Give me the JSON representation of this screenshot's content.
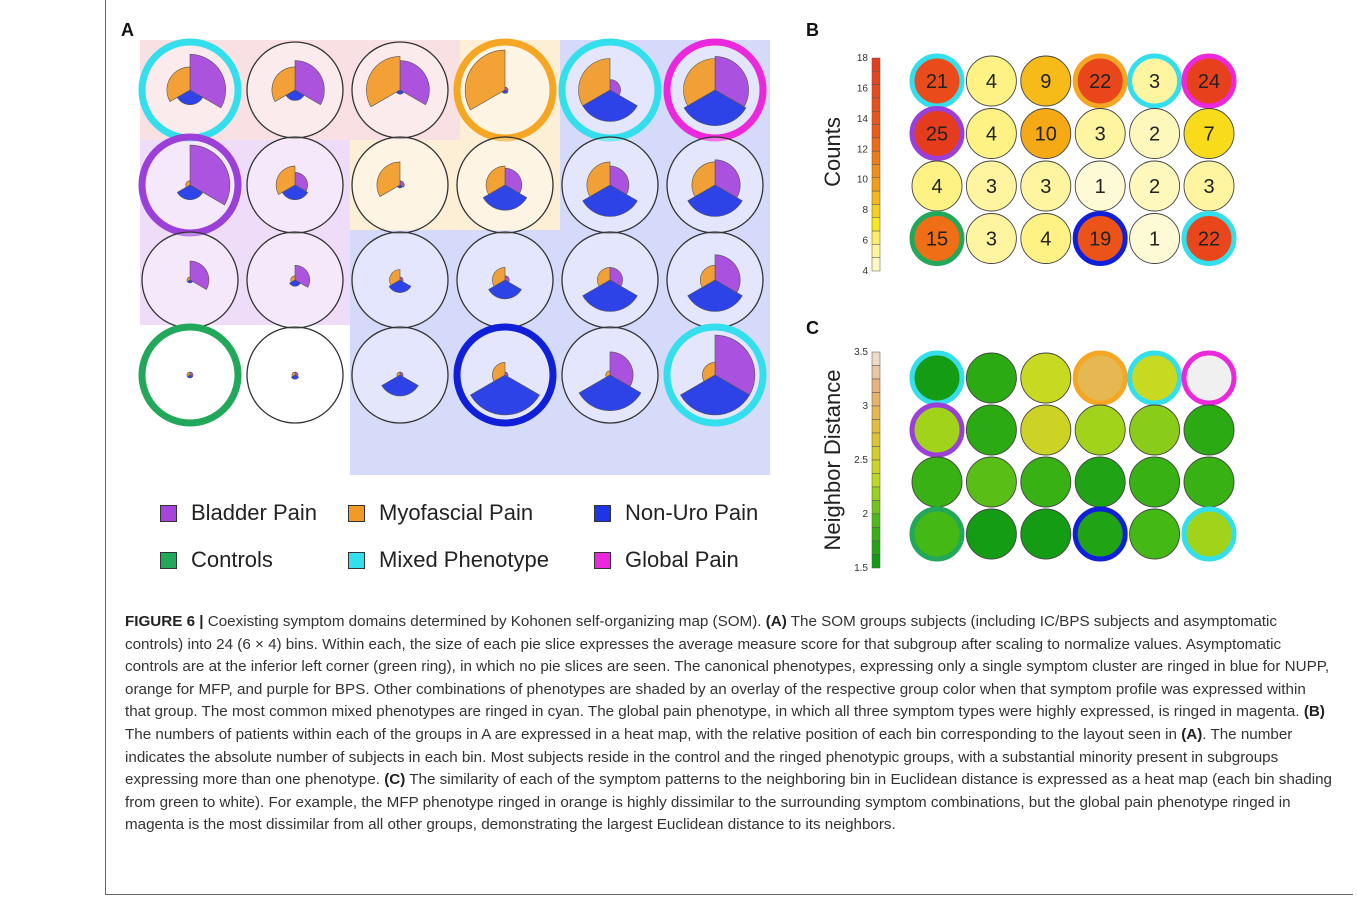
{
  "panels": {
    "a": "A",
    "b": "B",
    "c": "C"
  },
  "legend": [
    {
      "label": "Bladder Pain",
      "color": "#a545dc"
    },
    {
      "label": "Myofascial Pain",
      "color": "#f29a26"
    },
    {
      "label": "Non-Uro Pain",
      "color": "#1d35e6"
    },
    {
      "label": "Controls",
      "color": "#22a85b"
    },
    {
      "label": "Mixed Phenotype",
      "color": "#33dfec"
    },
    {
      "label": "Global Pain",
      "color": "#ec28dd"
    }
  ],
  "colors": {
    "bladder": "#a545dc",
    "myofascial": "#f29a26",
    "nonuro": "#1d35e6",
    "controls": "#22a85b",
    "mixed": "#33dfec",
    "global": "#ec28dd",
    "ring_blue": "#1020d8",
    "ring_orange": "#f5a623",
    "ring_purple": "#9a3fd8"
  },
  "som_grid": {
    "rows": 4,
    "cols": 6,
    "rings": [
      [
        "mixed",
        null,
        null,
        "myofascial",
        "mixed",
        "global"
      ],
      [
        "bladder",
        null,
        null,
        null,
        null,
        null
      ],
      [
        null,
        null,
        null,
        null,
        null,
        null
      ],
      [
        "controls",
        null,
        null,
        "nonuro",
        null,
        "mixed"
      ]
    ],
    "pies": [
      [
        [
          0.85,
          0.55,
          0.35
        ],
        [
          0.7,
          0.55,
          0.25
        ],
        [
          0.7,
          0.8,
          0.1
        ],
        [
          0.05,
          0.95,
          0.08
        ],
        [
          0.25,
          0.75,
          0.75
        ],
        [
          0.8,
          0.75,
          0.85
        ]
      ],
      [
        [
          0.95,
          0.1,
          0.35
        ],
        [
          0.3,
          0.45,
          0.35
        ],
        [
          0.1,
          0.55,
          0.05
        ],
        [
          0.4,
          0.45,
          0.6
        ],
        [
          0.45,
          0.55,
          0.75
        ],
        [
          0.6,
          0.55,
          0.75
        ]
      ],
      [
        [
          0.45,
          0.05,
          0.05
        ],
        [
          0.35,
          0.1,
          0.15
        ],
        [
          0.05,
          0.25,
          0.3
        ],
        [
          0.1,
          0.3,
          0.45
        ],
        [
          0.3,
          0.3,
          0.75
        ],
        [
          0.6,
          0.35,
          0.75
        ]
      ],
      [
        [
          0.0,
          0.05,
          0.0
        ],
        [
          0.0,
          0.02,
          0.1
        ],
        [
          0.05,
          0.05,
          0.5
        ],
        [
          0.05,
          0.3,
          0.95
        ],
        [
          0.55,
          0.1,
          0.85
        ],
        [
          0.95,
          0.3,
          0.95
        ]
      ]
    ]
  },
  "chart_data": [
    {
      "type": "heatmap",
      "title": "",
      "ylabel": "Counts",
      "colorbar_ticks": [
        "18",
        "16",
        "14",
        "12",
        "10",
        "8",
        "6",
        "4"
      ],
      "colorbar_range": [
        4,
        18
      ],
      "rows": 4,
      "cols": 6,
      "values": [
        [
          21,
          4,
          9,
          22,
          3,
          24
        ],
        [
          25,
          4,
          10,
          3,
          2,
          7
        ],
        [
          4,
          3,
          3,
          1,
          2,
          3
        ],
        [
          15,
          3,
          4,
          19,
          1,
          22
        ]
      ],
      "rings": [
        [
          "mixed",
          null,
          "",
          "myofascial",
          "mixed",
          "global"
        ],
        [
          "bladder",
          null,
          null,
          null,
          null,
          null
        ],
        [
          null,
          null,
          null,
          null,
          null,
          null
        ],
        [
          "controls",
          null,
          null,
          "nonuro",
          null,
          "mixed"
        ]
      ]
    },
    {
      "type": "heatmap",
      "title": "",
      "ylabel": "Neighbor Distance",
      "colorbar_ticks": [
        "3.5",
        "3",
        "2.5",
        "2",
        "1.5"
      ],
      "colorbar_range": [
        1.2,
        3.7
      ],
      "rows": 4,
      "cols": 6,
      "values": [
        [
          1.3,
          1.5,
          2.3,
          3.0,
          2.3,
          3.8
        ],
        [
          2.1,
          1.5,
          2.4,
          2.1,
          2.0,
          1.5
        ],
        [
          1.6,
          1.8,
          1.6,
          1.4,
          1.6,
          1.6
        ],
        [
          1.7,
          1.3,
          1.3,
          1.4,
          1.7,
          2.1
        ]
      ],
      "rings": [
        [
          "mixed",
          null,
          null,
          "myofascial",
          "mixed",
          "global"
        ],
        [
          "bladder",
          null,
          null,
          null,
          null,
          null
        ],
        [
          null,
          null,
          null,
          null,
          null,
          null
        ],
        [
          "controls",
          null,
          null,
          "nonuro",
          null,
          "mixed"
        ]
      ]
    }
  ],
  "caption": {
    "fig_label": "FIGURE 6 |",
    "intro": " Coexisting symptom domains determined by Kohonen self-organizing map (SOM). ",
    "a_label": "(A)",
    "a_text": " The SOM groups subjects (including IC/BPS subjects and asymptomatic controls) into 24 (6 × 4) bins. Within each, the size of each pie slice expresses the average measure score for that subgroup after scaling to normalize values. Asymptomatic controls are at the inferior left corner (green ring), in which no pie slices are seen. The canonical phenotypes, expressing only a single symptom cluster are ringed in blue for NUPP, orange for MFP, and purple for BPS. Other combinations of phenotypes are shaded by an overlay of the respective group color when that symptom profile was expressed within that group. The most common mixed phenotypes are ringed in cyan. The global pain phenotype, in which all three symptom types were highly expressed, is ringed in magenta. ",
    "b_label": "(B)",
    "b_text": " The numbers of patients within each of the groups in A are expressed in a heat map, with the relative position of each bin corresponding to the layout seen in ",
    "b_ref": "(A)",
    "b_text2": ". The number indicates the absolute number of subjects in each bin. Most subjects reside in the control and the ringed phenotypic groups, with a substantial minority present in subgroups expressing more than one phenotype. ",
    "c_label": "(C)",
    "c_text": " The similarity of each of the symptom patterns to the neighboring bin in Euclidean distance is expressed as a heat map (each bin shading from green to white). For example, the MFP phenotype ringed in orange is highly dissimilar to the surrounding symptom combinations, but the global pain phenotype ringed in magenta is the most dissimilar from all other groups, demonstrating the largest Euclidean distance to its neighbors."
  }
}
